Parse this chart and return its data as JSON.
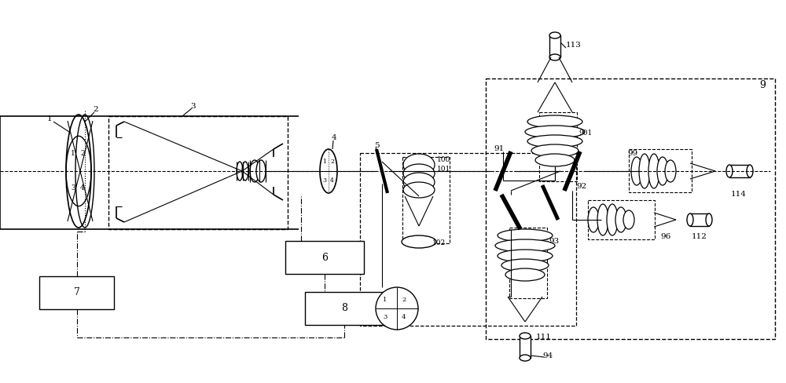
{
  "bg": "#ffffff",
  "lc": "#000000",
  "fig_w": 10.0,
  "fig_h": 4.88
}
